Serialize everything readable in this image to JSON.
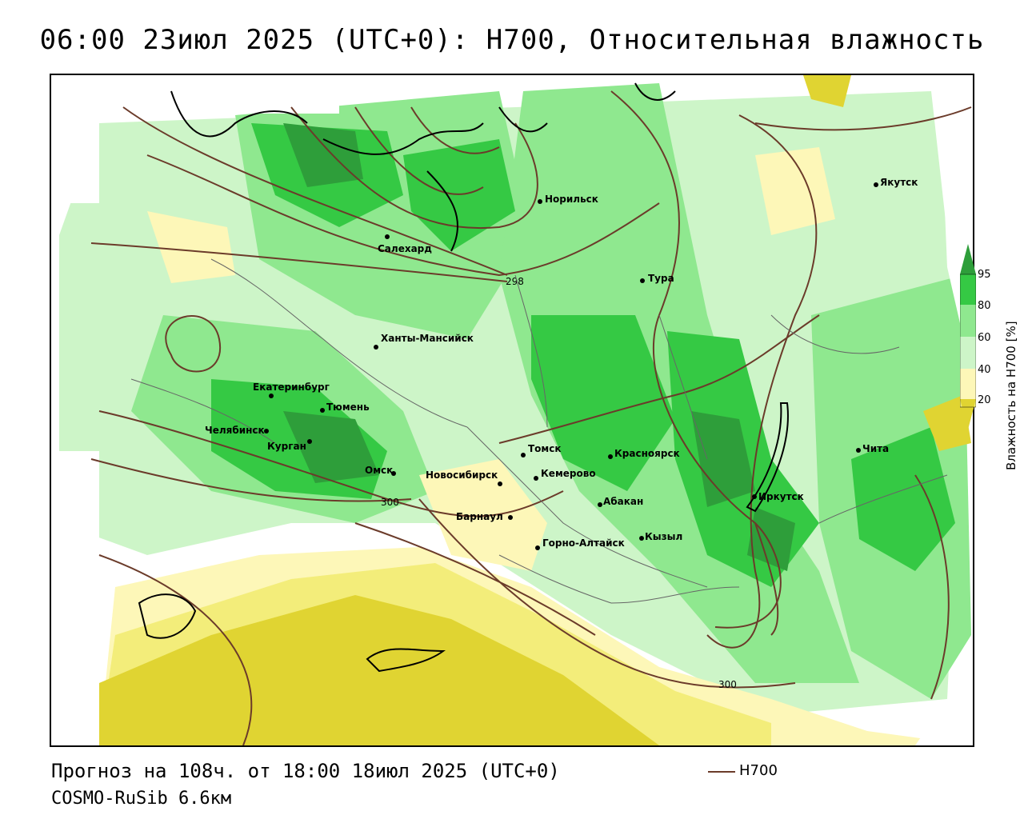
{
  "title": "06:00 23июл 2025 (UTC+0): H700, Относительная влажность",
  "footer": {
    "forecast": "Прогноз на 108ч. от 18:00 18июл 2025 (UTC+0)",
    "model": "COSMO-RuSib 6.6км"
  },
  "legend": {
    "h700_label": "H700",
    "line_color": "#6b3b2a"
  },
  "colorbar": {
    "title": "Влажность на H700 [%]",
    "ticks": [
      "95",
      "80",
      "60",
      "40",
      "20"
    ],
    "colors": [
      "#2e9e3a",
      "#35c944",
      "#8fe88f",
      "#cdf5c8",
      "#ffffff",
      "#fdf7b8",
      "#f3ed7a",
      "#e0d432"
    ]
  },
  "contour_labels": [
    "298",
    "300",
    "300"
  ],
  "cities": [
    {
      "name": "Салехард"
    },
    {
      "name": "Норильск"
    },
    {
      "name": "Якутск"
    },
    {
      "name": "Тура"
    },
    {
      "name": "Ханты-Мансийск"
    },
    {
      "name": "Екатеринбург"
    },
    {
      "name": "Тюмень"
    },
    {
      "name": "Челябинск"
    },
    {
      "name": "Курган"
    },
    {
      "name": "Омск"
    },
    {
      "name": "Новосибирск"
    },
    {
      "name": "Томск"
    },
    {
      "name": "Кемерово"
    },
    {
      "name": "Красноярск"
    },
    {
      "name": "Барнаул"
    },
    {
      "name": "Абакан"
    },
    {
      "name": "Горно-Алтайск"
    },
    {
      "name": "Кызыл"
    },
    {
      "name": "Иркутск"
    },
    {
      "name": "Чита"
    }
  ]
}
